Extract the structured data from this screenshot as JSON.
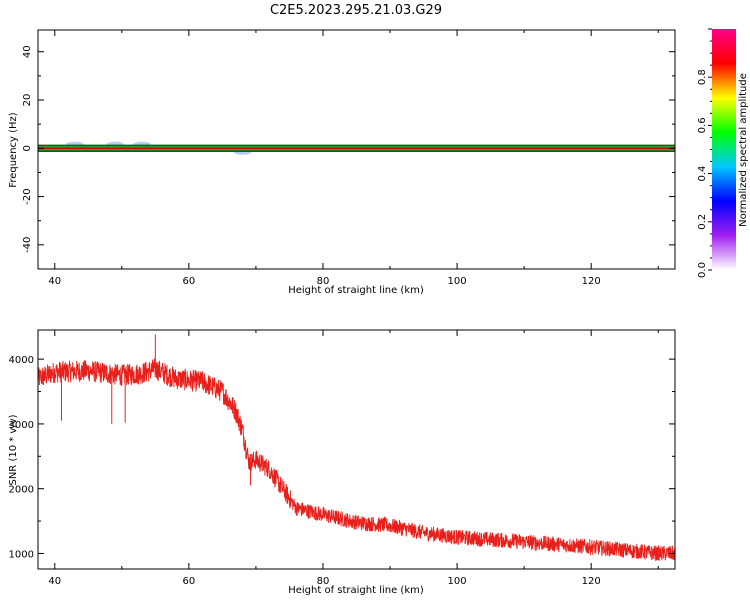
{
  "title": "C2E5.2023.295.21.03.G29",
  "colors": {
    "snr_line": "#e8201c",
    "band_edge": "#145c14",
    "band_center": "#cc1010",
    "band_fill": "#2fb83a",
    "noise_blob": "#a9bff2"
  },
  "chart_data": [
    {
      "type": "heatmap",
      "xlabel": "Height of straight line (km)",
      "ylabel": "Frequency (Hz)",
      "xlim": [
        37.5,
        132.5
      ],
      "ylim": [
        -50,
        49
      ],
      "xticks": [
        40,
        60,
        80,
        100,
        120
      ],
      "yticks": [
        -40,
        -20,
        0,
        20,
        40
      ],
      "band": {
        "freq_center": 0,
        "freq_half_width": 1.2,
        "amplitude": 0.95
      },
      "weak_patches": [
        {
          "x": 43,
          "freq": 1.5,
          "amplitude": 0.15
        },
        {
          "x": 49,
          "freq": 1.5,
          "amplitude": 0.15
        },
        {
          "x": 53,
          "freq": 1.5,
          "amplitude": 0.15
        },
        {
          "x": 68,
          "freq": -1.5,
          "amplitude": 0.12
        }
      ],
      "colorbar": {
        "label": "Normalized spectral amplitude",
        "range": [
          0,
          1
        ],
        "ticks": [
          "0.0",
          "0.2",
          "0.4",
          "0.6",
          "0.8"
        ],
        "tick_values": [
          0,
          0.2,
          0.4,
          0.6,
          0.8
        ],
        "colors": [
          "#ffffff",
          "#a020f0",
          "#0000ff",
          "#00c8ff",
          "#00ff00",
          "#ffff00",
          "#ff0000",
          "#ff0088"
        ]
      }
    },
    {
      "type": "line",
      "xlabel": "Height of straight line (km)",
      "ylabel": "SNR (10 * v/v)",
      "xlim": [
        37.5,
        132.5
      ],
      "ylim": [
        760,
        4450
      ],
      "xticks": [
        40,
        60,
        80,
        100,
        120
      ],
      "yticks": [
        1000,
        2000,
        3000,
        4000
      ],
      "series": [
        {
          "x": [
            37.5,
            40,
            45,
            50,
            53,
            55,
            58,
            62,
            65,
            67,
            68,
            69,
            70,
            72,
            74,
            76,
            80,
            85,
            90,
            95,
            100,
            110,
            120,
            130,
            132.5
          ],
          "y": [
            3700,
            3800,
            3820,
            3750,
            3780,
            3850,
            3700,
            3650,
            3500,
            3200,
            2900,
            2400,
            2450,
            2300,
            2000,
            1700,
            1600,
            1480,
            1430,
            1320,
            1250,
            1180,
            1100,
            1000,
            1000
          ],
          "noise": 170,
          "spikes": [
            {
              "x": 55,
              "y": 4380
            },
            {
              "x": 41,
              "y": 3050
            },
            {
              "x": 48.5,
              "y": 3000
            },
            {
              "x": 50.5,
              "y": 3020
            },
            {
              "x": 69.2,
              "y": 2050
            }
          ]
        }
      ]
    }
  ]
}
